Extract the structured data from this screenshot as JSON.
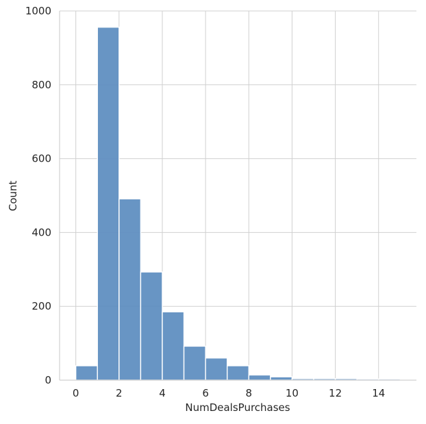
{
  "chart_data": {
    "type": "bar",
    "title": "",
    "xlabel": "NumDealsPurchases",
    "ylabel": "Count",
    "bin_width": 1,
    "bins": [
      {
        "x0": 0,
        "x1": 1,
        "count": 39
      },
      {
        "x0": 1,
        "x1": 2,
        "count": 956
      },
      {
        "x0": 2,
        "x1": 3,
        "count": 491
      },
      {
        "x0": 3,
        "x1": 4,
        "count": 293
      },
      {
        "x0": 4,
        "x1": 5,
        "count": 185
      },
      {
        "x0": 5,
        "x1": 6,
        "count": 92
      },
      {
        "x0": 6,
        "x1": 7,
        "count": 60
      },
      {
        "x0": 7,
        "x1": 8,
        "count": 39
      },
      {
        "x0": 8,
        "x1": 9,
        "count": 14
      },
      {
        "x0": 9,
        "x1": 10,
        "count": 9
      },
      {
        "x0": 10,
        "x1": 11,
        "count": 4
      },
      {
        "x0": 11,
        "x1": 12,
        "count": 4
      },
      {
        "x0": 12,
        "x1": 13,
        "count": 4
      },
      {
        "x0": 13,
        "x1": 14,
        "count": 3
      },
      {
        "x0": 14,
        "x1": 15,
        "count": 3
      }
    ],
    "xlim": [
      -0.75,
      15.75
    ],
    "ylim": [
      0,
      1000
    ],
    "xticks": [
      0,
      2,
      4,
      6,
      8,
      10,
      12,
      14
    ],
    "yticks": [
      0,
      200,
      400,
      600,
      800,
      1000
    ],
    "grid": true,
    "bar_color": "#5b8cbf",
    "bar_edge_color": "#ffffff",
    "grid_color": "#d0d0d0"
  }
}
